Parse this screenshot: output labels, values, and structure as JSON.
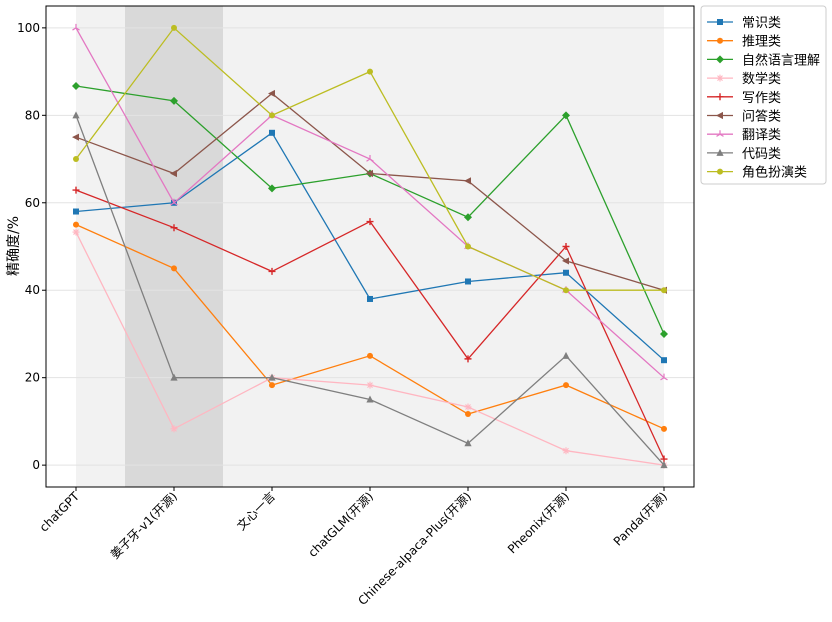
{
  "chart_data": {
    "type": "line",
    "title": "",
    "xlabel": "",
    "ylabel": "精确度/%",
    "ylim": [
      -5,
      105
    ],
    "yticks": [
      0,
      20,
      40,
      60,
      80,
      100
    ],
    "grid": "horizontal",
    "legend_position": "outside-right-top",
    "categories": [
      "chatGPT",
      "姜子牙-v1(开源)",
      "文心一言",
      "chatGLM(开源)",
      "Chinese-alpaca-Plus(开源)",
      "Pheonix(开源)",
      "Panda(开源)"
    ],
    "highlight_band_light": [
      "chatGPT",
      "Panda(开源)"
    ],
    "highlight_band_dark": "姜子牙-v1(开源)",
    "series": [
      {
        "name": "常识类",
        "color": "#1f77b4",
        "marker": "square",
        "values": [
          58,
          60,
          76,
          38,
          42,
          44,
          24
        ]
      },
      {
        "name": "推理类",
        "color": "#ff7f0e",
        "marker": "circle",
        "values": [
          55,
          45,
          18.3,
          25,
          11.7,
          18.3,
          8.3
        ]
      },
      {
        "name": "自然语言理解",
        "color": "#2ca02c",
        "marker": "diamond",
        "values": [
          86.7,
          83.3,
          63.3,
          66.7,
          56.7,
          80,
          30
        ]
      },
      {
        "name": "数学类",
        "color": "#ffb6c1",
        "marker": "plus-x",
        "values": [
          53.3,
          8.3,
          20,
          18.3,
          13.3,
          3.3,
          0
        ]
      },
      {
        "name": "写作类",
        "color": "#d62728",
        "marker": "plus",
        "values": [
          62.9,
          54.3,
          44.3,
          55.7,
          24.3,
          50,
          1.4
        ]
      },
      {
        "name": "问答类",
        "color": "#8c564b",
        "marker": "triangle-left",
        "values": [
          75,
          66.7,
          85,
          66.7,
          65,
          46.7,
          40
        ]
      },
      {
        "name": "翻译类",
        "color": "#e377c2",
        "marker": "tri",
        "values": [
          100,
          60,
          80,
          70,
          50,
          40,
          20
        ]
      },
      {
        "name": "代码类",
        "color": "#7f7f7f",
        "marker": "triangle-up",
        "values": [
          80,
          20,
          20,
          15,
          5,
          25,
          0
        ]
      },
      {
        "name": "角色扮演类",
        "color": "#bcbd22",
        "marker": "circle",
        "values": [
          70,
          100,
          80,
          90,
          50,
          40,
          40
        ]
      }
    ]
  }
}
